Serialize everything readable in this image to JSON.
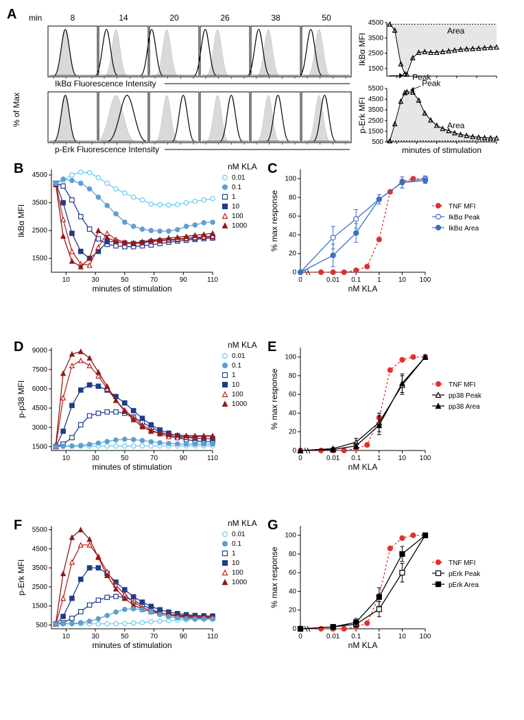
{
  "panelA": {
    "label": "A",
    "time_header_label": "min",
    "time_labels": [
      "8",
      "14",
      "20",
      "26",
      "38",
      "50"
    ],
    "row1_xlabel": "IkBα Fluorescence Intensity",
    "row2_xlabel": "p-Erk Fluorescence Intensity",
    "y_axis_label": "% of Max",
    "ikba_mfi": {
      "ylabel": "IkBα MFI",
      "ylim": [
        1000,
        4500
      ],
      "yticks": [
        1500,
        2500,
        3500,
        4500
      ],
      "xlim": [
        0,
        110
      ],
      "xticks": [
        10,
        30,
        50,
        70,
        90,
        110
      ],
      "xlabel": "",
      "area_label": "Area",
      "peak_label": "Peak",
      "baseline": 4400,
      "area_fill": "#e6e6e6",
      "line_color": "#000000",
      "data": [
        [
          3,
          4400
        ],
        [
          8,
          4000
        ],
        [
          14,
          1800
        ],
        [
          18,
          1150
        ],
        [
          20,
          1120
        ],
        [
          26,
          2200
        ],
        [
          32,
          2550
        ],
        [
          38,
          2600
        ],
        [
          44,
          2550
        ],
        [
          50,
          2550
        ],
        [
          56,
          2600
        ],
        [
          62,
          2650
        ],
        [
          68,
          2700
        ],
        [
          74,
          2750
        ],
        [
          80,
          2780
        ],
        [
          86,
          2800
        ],
        [
          92,
          2820
        ],
        [
          98,
          2850
        ],
        [
          104,
          2880
        ],
        [
          110,
          2900
        ]
      ]
    },
    "perk_mfi": {
      "ylabel": "p-Erk MFI",
      "ylim": [
        500,
        5500
      ],
      "yticks": [
        500,
        1500,
        2500,
        3500,
        4500,
        5500
      ],
      "xlim": [
        0,
        110
      ],
      "xticks": [
        10,
        30,
        50,
        70,
        90,
        110
      ],
      "xlabel": "minutes of stimulation",
      "area_label": "Area",
      "peak_label": "Peak",
      "baseline": 600,
      "area_fill": "#e6e6e6",
      "line_color": "#000000",
      "data": [
        [
          3,
          600
        ],
        [
          8,
          2200
        ],
        [
          14,
          4300
        ],
        [
          18,
          5100
        ],
        [
          20,
          5200
        ],
        [
          26,
          5150
        ],
        [
          32,
          4400
        ],
        [
          38,
          3200
        ],
        [
          44,
          2550
        ],
        [
          50,
          2050
        ],
        [
          56,
          1750
        ],
        [
          62,
          1550
        ],
        [
          68,
          1350
        ],
        [
          74,
          1200
        ],
        [
          80,
          1100
        ],
        [
          86,
          1000
        ],
        [
          92,
          950
        ],
        [
          98,
          900
        ],
        [
          104,
          880
        ],
        [
          110,
          860
        ]
      ]
    }
  },
  "shared_legend": {
    "title": "nM KLA",
    "title_fontsize": 11,
    "items": [
      {
        "label": "0.01",
        "color": "#66ccee",
        "marker": "circle",
        "fill": "none"
      },
      {
        "label": "0.1",
        "color": "#5f9ed1",
        "marker": "circle",
        "fill": "#5f9ed1"
      },
      {
        "label": "1",
        "color": "#1f3c88",
        "marker": "square",
        "fill": "none"
      },
      {
        "label": "10",
        "color": "#1f3c88",
        "marker": "square",
        "fill": "#1f3c88"
      },
      {
        "label": "100",
        "color": "#c02020",
        "marker": "triangle",
        "fill": "none"
      },
      {
        "label": "1000",
        "color": "#8c1a1a",
        "marker": "triangle",
        "fill": "#8c1a1a"
      }
    ]
  },
  "panelB": {
    "label": "B",
    "type": "line",
    "ylabel": "IkBα MFI",
    "xlabel": "minutes of stimulation",
    "ylim": [
      1000,
      4700
    ],
    "yticks": [
      1500,
      2500,
      3500,
      4500
    ],
    "xlim": [
      0,
      110
    ],
    "xticks": [
      10,
      30,
      50,
      70,
      90,
      110
    ],
    "x": [
      3,
      8,
      14,
      20,
      26,
      32,
      38,
      44,
      50,
      56,
      62,
      68,
      74,
      80,
      86,
      92,
      98,
      104,
      110
    ],
    "series": {
      "0.01": [
        4200,
        4300,
        4500,
        4600,
        4580,
        4400,
        4200,
        4000,
        3850,
        3700,
        3600,
        3450,
        3430,
        3420,
        3430,
        3500,
        3550,
        3600,
        3650
      ],
      "0.1": [
        4200,
        4350,
        4300,
        4200,
        4000,
        3700,
        3400,
        3100,
        2800,
        2650,
        2550,
        2500,
        2480,
        2480,
        2530,
        2650,
        2700,
        2780,
        2800
      ],
      "1": [
        4200,
        4100,
        3600,
        3000,
        2550,
        2200,
        2000,
        1950,
        1920,
        1920,
        1950,
        1980,
        2030,
        2080,
        2120,
        2150,
        2180,
        2210,
        2230
      ],
      "10": [
        4200,
        3500,
        2400,
        1750,
        1500,
        1750,
        2100,
        2100,
        2050,
        2030,
        2060,
        2100,
        2130,
        2150,
        2170,
        2200,
        2220,
        2250,
        2270
      ],
      "100": [
        4200,
        2900,
        1750,
        1300,
        1250,
        1900,
        2400,
        2180,
        2080,
        2050,
        2080,
        2120,
        2150,
        2170,
        2200,
        2220,
        2250,
        2280,
        2300
      ],
      "1000": [
        4150,
        2300,
        1400,
        1200,
        1500,
        2500,
        2250,
        2100,
        2050,
        2050,
        2100,
        2150,
        2180,
        2230,
        2260,
        2290,
        2330,
        2360,
        2400
      ]
    }
  },
  "panelC": {
    "label": "C",
    "type": "semilogx-dose",
    "ylabel": "% max response",
    "xlabel": "nM KLA",
    "ylim": [
      0,
      110
    ],
    "yticks": [
      0,
      20,
      40,
      60,
      80,
      100
    ],
    "xticks_label": [
      "0",
      "0.01",
      "0.1",
      "1",
      "10",
      "100"
    ],
    "legend": [
      {
        "label": "TNF  MFI",
        "color": "#e03030",
        "marker": "circle",
        "fill": "#e03030",
        "dash": "3 3"
      },
      {
        "label": "IkBα Peak",
        "color": "#3b6fc6",
        "marker": "circle",
        "fill": "none",
        "dash": "none"
      },
      {
        "label": "IkBα Area",
        "color": "#3b6fc6",
        "marker": "circle",
        "fill": "#3b6fc6",
        "dash": "none"
      }
    ],
    "tnf_x": [
      0.001,
      0.003,
      0.01,
      0.03,
      0.1,
      0.3,
      1,
      3,
      10,
      30,
      100
    ],
    "tnf_y": [
      0,
      0,
      0,
      0,
      2,
      6,
      35,
      86,
      97,
      100,
      100
    ],
    "peak_x": [
      0.001,
      0.01,
      0.1,
      1,
      10,
      100
    ],
    "peak_y": [
      0,
      37,
      57,
      78,
      96,
      100
    ],
    "peak_err": [
      0,
      12,
      10,
      5,
      6,
      3
    ],
    "area_x": [
      0.001,
      0.01,
      0.1,
      1,
      10,
      100
    ],
    "area_y": [
      0,
      18,
      42,
      78,
      96,
      98
    ],
    "area_err": [
      0,
      12,
      10,
      5,
      6,
      3
    ]
  },
  "panelD": {
    "label": "D",
    "type": "line",
    "ylabel": "p-p38 MFI",
    "xlabel": "minutes of stimulation",
    "ylim": [
      1200,
      9200
    ],
    "yticks": [
      1500,
      3000,
      4500,
      6000,
      7500,
      9000
    ],
    "xlim": [
      0,
      110
    ],
    "xticks": [
      10,
      30,
      50,
      70,
      90,
      110
    ],
    "x": [
      3,
      8,
      14,
      20,
      26,
      32,
      38,
      44,
      50,
      56,
      62,
      68,
      74,
      80,
      86,
      92,
      98,
      104,
      110
    ],
    "series": {
      "0.01": [
        1500,
        1520,
        1530,
        1540,
        1550,
        1550,
        1550,
        1550,
        1550,
        1550,
        1560,
        1560,
        1560,
        1560,
        1560,
        1560,
        1560,
        1560,
        1560
      ],
      "0.1": [
        1500,
        1530,
        1560,
        1600,
        1680,
        1780,
        1900,
        2020,
        2080,
        2050,
        1980,
        1880,
        1800,
        1750,
        1720,
        1700,
        1700,
        1700,
        1700
      ],
      "1": [
        1500,
        1700,
        2200,
        3200,
        3900,
        4100,
        4200,
        4200,
        4100,
        3800,
        3400,
        3000,
        2650,
        2400,
        2200,
        2050,
        1950,
        1900,
        1880
      ],
      "10": [
        1500,
        2700,
        4700,
        5900,
        6300,
        6200,
        5900,
        5400,
        4900,
        4300,
        3700,
        3200,
        2800,
        2550,
        2350,
        2220,
        2150,
        2120,
        2120
      ],
      "100": [
        1500,
        5300,
        7800,
        8200,
        7800,
        7000,
        6000,
        5100,
        4350,
        3750,
        3200,
        2800,
        2500,
        2280,
        2200,
        2250,
        2280,
        2300,
        2320
      ],
      "1000": [
        1650,
        7200,
        8700,
        8900,
        8400,
        7300,
        6200,
        5100,
        4250,
        3600,
        3050,
        2700,
        2550,
        2450,
        2400,
        2360,
        2350,
        2350,
        2350
      ]
    }
  },
  "panelE": {
    "label": "E",
    "type": "semilogx-dose",
    "ylabel": "% max response",
    "xlabel": "nM KLA",
    "ylim": [
      0,
      110
    ],
    "yticks": [
      0,
      20,
      40,
      60,
      80,
      100
    ],
    "xticks_label": [
      "0",
      "0.01",
      "0.1",
      "1",
      "10",
      "100"
    ],
    "legend": [
      {
        "label": "TNF  MFI",
        "color": "#e03030",
        "marker": "circle",
        "fill": "#e03030",
        "dash": "3 3"
      },
      {
        "label": "pp38 Peak",
        "color": "#000000",
        "marker": "triangle",
        "fill": "none",
        "dash": "none"
      },
      {
        "label": "pp38 Area",
        "color": "#000000",
        "marker": "triangle",
        "fill": "#000000",
        "dash": "none"
      }
    ],
    "tnf_x": [
      0.001,
      0.003,
      0.01,
      0.03,
      0.1,
      0.3,
      1,
      3,
      10,
      30,
      100
    ],
    "tnf_y": [
      0,
      0,
      0,
      0,
      2,
      6,
      35,
      86,
      97,
      100,
      100
    ],
    "peak_x": [
      0.001,
      0.01,
      0.1,
      1,
      10,
      100
    ],
    "peak_y": [
      0,
      2,
      9,
      30,
      70,
      100
    ],
    "peak_err": [
      0,
      1,
      4,
      10,
      10,
      2
    ],
    "area_x": [
      0.001,
      0.01,
      0.1,
      1,
      10,
      100
    ],
    "area_y": [
      0,
      1,
      5,
      27,
      72,
      100
    ],
    "area_err": [
      0,
      1,
      3,
      10,
      10,
      2
    ]
  },
  "panelF": {
    "label": "F",
    "type": "line",
    "ylabel": "p-Erk MFI",
    "xlabel": "minutes of stimulation",
    "ylim": [
      300,
      5700
    ],
    "yticks": [
      500,
      1500,
      2500,
      3500,
      4500,
      5500
    ],
    "xlim": [
      0,
      110
    ],
    "xticks": [
      10,
      30,
      50,
      70,
      90,
      110
    ],
    "x": [
      3,
      8,
      14,
      20,
      26,
      32,
      38,
      44,
      50,
      56,
      62,
      68,
      74,
      80,
      86,
      92,
      98,
      104,
      110
    ],
    "series": {
      "0.01": [
        550,
        560,
        560,
        560,
        560,
        560,
        560,
        570,
        580,
        600,
        630,
        670,
        700,
        730,
        750,
        770,
        790,
        800,
        800
      ],
      "0.1": [
        550,
        560,
        580,
        620,
        700,
        830,
        1000,
        1180,
        1320,
        1350,
        1300,
        1180,
        1050,
        940,
        870,
        840,
        830,
        830,
        830
      ],
      "1": [
        550,
        620,
        850,
        1200,
        1550,
        1800,
        1950,
        2000,
        1950,
        1780,
        1560,
        1330,
        1150,
        1030,
        950,
        900,
        880,
        870,
        870
      ],
      "10": [
        550,
        950,
        1900,
        2900,
        3500,
        3500,
        3200,
        2750,
        2350,
        1980,
        1700,
        1480,
        1300,
        1180,
        1100,
        1040,
        1000,
        980,
        970
      ],
      "100": [
        550,
        1900,
        3800,
        4700,
        4700,
        4100,
        3300,
        2600,
        2100,
        1700,
        1430,
        1240,
        1120,
        1040,
        980,
        940,
        920,
        910,
        910
      ],
      "1000": [
        600,
        3200,
        5100,
        5500,
        5000,
        4050,
        3100,
        2400,
        1900,
        1550,
        1330,
        1200,
        1120,
        1060,
        1020,
        990,
        970,
        960,
        960
      ]
    }
  },
  "panelG": {
    "label": "G",
    "type": "semilogx-dose",
    "ylabel": "% max response",
    "xlabel": "nM KLA",
    "ylim": [
      0,
      110
    ],
    "yticks": [
      0,
      20,
      40,
      60,
      80,
      100
    ],
    "xticks_label": [
      "0",
      "0.01",
      "0.1",
      "1",
      "10",
      "100"
    ],
    "legend": [
      {
        "label": "TNF  MFI",
        "color": "#e03030",
        "marker": "circle",
        "fill": "#e03030",
        "dash": "3 3"
      },
      {
        "label": "pErk Peak",
        "color": "#000000",
        "marker": "square",
        "fill": "none",
        "dash": "none"
      },
      {
        "label": "pErk Area",
        "color": "#000000",
        "marker": "square",
        "fill": "#000000",
        "dash": "none"
      }
    ],
    "tnf_x": [
      0.001,
      0.003,
      0.01,
      0.03,
      0.1,
      0.3,
      1,
      3,
      10,
      30,
      100
    ],
    "tnf_y": [
      0,
      0,
      0,
      0,
      2,
      6,
      35,
      86,
      97,
      100,
      100
    ],
    "peak_x": [
      0.001,
      0.01,
      0.1,
      1,
      10,
      100
    ],
    "peak_y": [
      0,
      2,
      5,
      21,
      60,
      100
    ],
    "peak_err": [
      0,
      1,
      3,
      8,
      10,
      2
    ],
    "area_x": [
      0.001,
      0.01,
      0.1,
      1,
      10,
      100
    ],
    "area_y": [
      0,
      2,
      7,
      34,
      80,
      100
    ],
    "area_err": [
      0,
      1,
      4,
      10,
      8,
      2
    ]
  }
}
